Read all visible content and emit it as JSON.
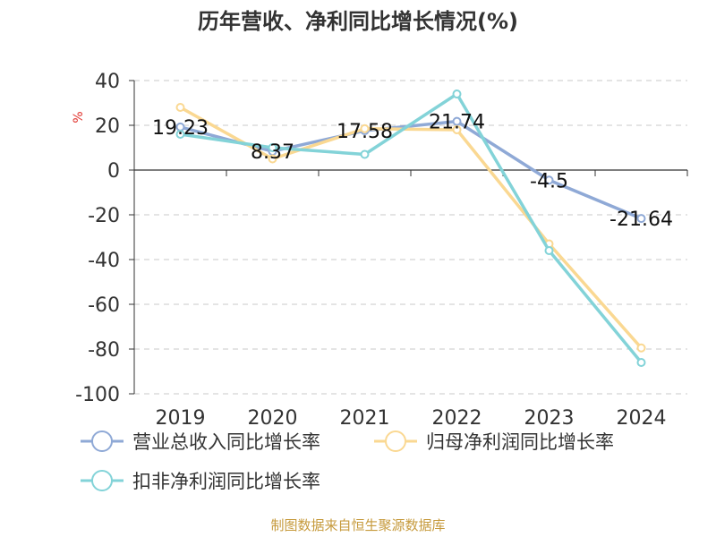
{
  "chart_data": {
    "type": "line",
    "title": "历年营收、净利同比增长情况(%)",
    "ylabel": "%",
    "categories": [
      "2019",
      "2020",
      "2021",
      "2022",
      "2023",
      "2024"
    ],
    "ylim": [
      -100,
      40
    ],
    "yticks": [
      40,
      20,
      0,
      -20,
      -40,
      -60,
      -80,
      -100
    ],
    "grid": true,
    "legend_position": "bottom",
    "series": [
      {
        "name": "营业总收入同比增长率",
        "color": "#8fa9d6",
        "values": [
          19.23,
          8.37,
          17.58,
          21.74,
          -4.5,
          -21.64
        ],
        "labels": [
          "19.23",
          "8.37",
          "17.58",
          "21.74",
          "-4.5",
          "-21.64"
        ]
      },
      {
        "name": "归母净利润同比增长率",
        "color": "#fad892",
        "values": [
          28,
          5,
          18.5,
          18,
          -33,
          -79.5
        ]
      },
      {
        "name": "扣非净利润同比增长率",
        "color": "#83d3d8",
        "values": [
          16,
          10,
          7,
          34,
          -36,
          -86
        ]
      }
    ]
  },
  "footer": "制图数据来自恒生聚源数据库"
}
